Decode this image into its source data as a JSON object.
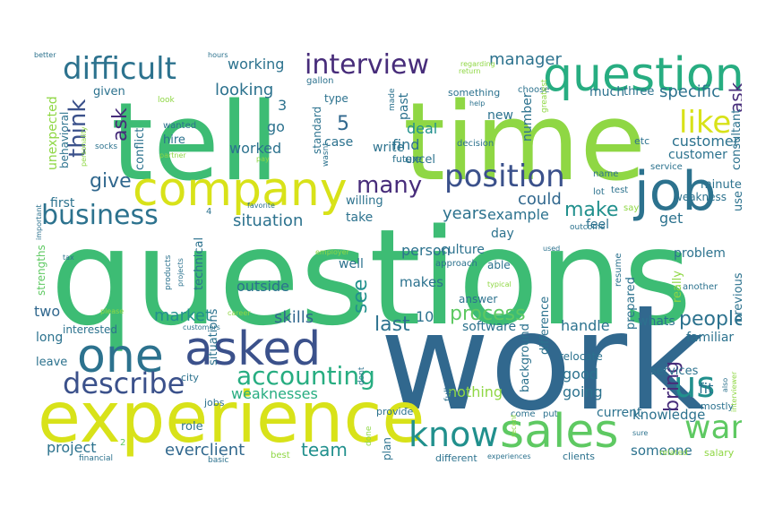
{
  "words": {
    "tell": "tell",
    "time": "time",
    "questions": "questions",
    "work": "work",
    "experience": "experience",
    "question": "question",
    "company": "company",
    "job": "job",
    "one": "one",
    "asked": "asked",
    "sales": "sales",
    "interview": "interview",
    "difficult": "difficult",
    "position": "position",
    "business": "business",
    "know": "know",
    "describe": "describe",
    "us": "us",
    "want": "want",
    "accounting": "accounting",
    "like": "like",
    "think": "think",
    "process": "process",
    "people": "people",
    "many": "many",
    "make": "make",
    "customer": "customer",
    "give": "give",
    "looking": "looking",
    "working": "working",
    "manager": "manager",
    "ask": "ask",
    "specific": "specific",
    "bring": "bring",
    "situation": "situation",
    "see": "see",
    "team": "team",
    "skills": "skills",
    "market": "market",
    "everclient": "everclient",
    "weaknesses": "weaknesses",
    "knowledge": "knowledge",
    "someone": "someone",
    "handle": "handle",
    "nothing": "nothing",
    "project": "project",
    "last": "last",
    "years": "years",
    "example": "example",
    "could": "could",
    "deal": "deal",
    "find": "find",
    "five": "5",
    "ten": "10",
    "three_num": "3",
    "two_num": "2",
    "four_num": "4",
    "culture": "culture",
    "get": "get",
    "fit": "fit",
    "good": "good",
    "going": "going",
    "current": "current",
    "previous": "previous",
    "problem": "problem",
    "feel": "feel",
    "weakness": "weakness",
    "minutes": "minutes",
    "first": "first",
    "situations": "situations",
    "two": "two",
    "long": "long",
    "interested": "interested",
    "software": "software",
    "whats": "whats",
    "familiar": "familiar",
    "services": "services",
    "relocate": "relocate",
    "background": "background",
    "difference": "difference",
    "prepared": "prepared",
    "really": "really",
    "answer": "answer",
    "person": "person",
    "makes": "makes",
    "well": "well",
    "outside": "outside",
    "technical": "technical",
    "take": "take",
    "willing": "willing",
    "excel": "excel",
    "day": "day",
    "able": "able",
    "approach": "approach",
    "unexpected": "unexpected",
    "behavioral": "behavioral",
    "conflict": "conflict",
    "hire": "hire",
    "wanted": "wanted",
    "given": "given",
    "much": "much",
    "three": "three",
    "new": "new",
    "case": "case",
    "type": "type",
    "write": "write",
    "past": "past",
    "number": "number",
    "future": "future",
    "decision": "decision",
    "something": "something",
    "choose": "choose",
    "consultant": "consultant",
    "etc": "etc",
    "service": "service",
    "use": "use",
    "test": "test",
    "lot": "lot",
    "name": "name",
    "say": "say",
    "outcome": "outcome",
    "resume": "resume",
    "another": "another",
    "leave": "leave",
    "strengths": "strengths",
    "mostly": "mostly",
    "salary": "salary",
    "related": "related",
    "clients": "clients",
    "experiences": "experiences",
    "different": "different",
    "plan": "plan",
    "provide": "provide",
    "come": "come",
    "put": "put",
    "full": "full",
    "recent": "recent",
    "done": "done",
    "dont": "dont",
    "city": "city",
    "jobs": "jobs",
    "role": "role",
    "basic": "basic",
    "best": "best",
    "financial": "financial",
    "go": "go",
    "worked": "worked",
    "standard": "standard",
    "gallon": "gallon",
    "made": "made",
    "help": "help",
    "greatest": "greatest",
    "return": "return",
    "regarding": "regarding",
    "hours": "hours",
    "better": "better",
    "look": "look",
    "socks": "socks",
    "personality": "personality",
    "partner": "partner",
    "pay": "pay",
    "wasnt": "wasnt",
    "favorite": "favorite",
    "important": "important",
    "tax": "tax",
    "employer": "employer",
    "products": "products",
    "projects": "projects",
    "career": "career",
    "customers": "customers",
    "please": "please",
    "typical": "typical",
    "used": "used",
    "sure": "sure",
    "also": "also",
    "interviewer": "interviewer"
  },
  "colors": {
    "dark_purple": "#440154",
    "purple": "#472c7a",
    "indigo": "#3b518b",
    "blue": "#31688e",
    "steel": "#2c728e",
    "teal": "#21908d",
    "teal_green": "#27ad81",
    "green": "#3dbc74",
    "lime_green": "#5ec962",
    "lime": "#8fd744",
    "yellow_green": "#addc30",
    "yellow": "#d8e219"
  }
}
